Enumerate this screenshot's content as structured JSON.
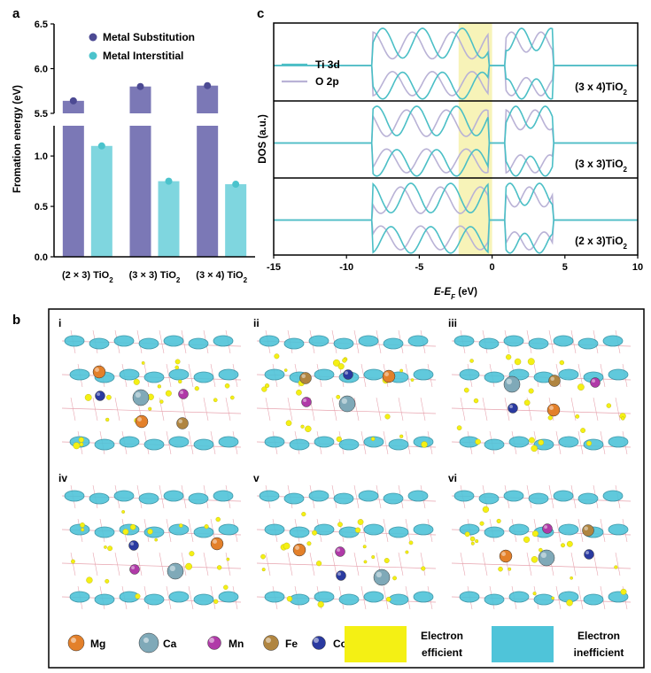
{
  "chart_data": [
    {
      "panel": "a",
      "type": "bar",
      "ylabel": "Fromation energy (eV)",
      "ylim_lower": [
        0.0,
        1.3
      ],
      "ylim_upper": [
        5.5,
        6.5
      ],
      "yticks_lower": [
        "0.0",
        "0.5",
        "1.0"
      ],
      "yticks_upper": [
        "5.5",
        "6.0",
        "6.5"
      ],
      "categories": [
        {
          "pre": "(2 × 3) TiO",
          "sub": "2"
        },
        {
          "pre": "(3 × 3) TiO",
          "sub": "2"
        },
        {
          "pre": "(3 × 4) TiO",
          "sub": "2"
        }
      ],
      "series": [
        {
          "name": "Metal Substitution",
          "values": [
            5.64,
            5.8,
            5.81
          ],
          "color": "#7b78b6",
          "dot": "#4c4a93"
        },
        {
          "name": "Metal Interstitial",
          "values": [
            1.1,
            0.75,
            0.72
          ],
          "color": "#7fd6df",
          "dot": "#4bc3cc"
        }
      ]
    },
    {
      "panel": "c",
      "type": "line",
      "xlabel": {
        "pre": "E-E",
        "sub": "F",
        "post": " (eV)"
      },
      "ylabel": "DOS (a.u.)",
      "xlim": [
        -15,
        10
      ],
      "xticks": [
        "-15",
        "-10",
        "-5",
        "0",
        "5",
        "10"
      ],
      "highlight_range": [
        -2.3,
        0
      ],
      "highlight_color": "#f7f3b8",
      "legend": [
        {
          "name": "Ti 3d",
          "color": "#4bbfc6"
        },
        {
          "name": "O 2p",
          "color": "#b9b2d6"
        }
      ],
      "systems": [
        {
          "pre": "(3 x 4)TiO",
          "sub": "2"
        },
        {
          "pre": "(3 x 3)TiO",
          "sub": "2"
        },
        {
          "pre": "(2 x 3)TiO",
          "sub": "2"
        }
      ]
    }
  ],
  "labels": {
    "a": "a",
    "b": "b",
    "c": "c"
  },
  "panel_b": {
    "subpanels": [
      "i",
      "ii",
      "iii",
      "iv",
      "v",
      "vi"
    ],
    "legend": {
      "atoms": [
        {
          "name": "Mg",
          "color": "#e3802a"
        },
        {
          "name": "Ca",
          "color": "#7fa9b8"
        },
        {
          "name": "Mn",
          "color": "#b03aa8"
        },
        {
          "name": "Fe",
          "color": "#b08540"
        },
        {
          "name": "Co",
          "color": "#2a3aa0"
        }
      ],
      "efficient": {
        "line1": "Electron",
        "line2": "efficient",
        "color": "#f4f014"
      },
      "inefficient": {
        "line1": "Electron",
        "line2": "inefficient",
        "color": "#4fc4d9"
      }
    },
    "atoms_by_subpanel": [
      [
        "Mg",
        "Ca",
        "Fe",
        "Co",
        "Mg",
        "Mn"
      ],
      [
        "Fe",
        "Ca",
        "Mg",
        "Mn",
        "Co"
      ],
      [
        "Ca",
        "Mg",
        "Mn",
        "Co",
        "Fe"
      ],
      [
        "Co",
        "Ca",
        "Mg",
        "Mn"
      ],
      [
        "Mn",
        "Ca",
        "Mg",
        "Co"
      ],
      [
        "Ca",
        "Fe",
        "Mg",
        "Mn",
        "Co"
      ]
    ]
  }
}
